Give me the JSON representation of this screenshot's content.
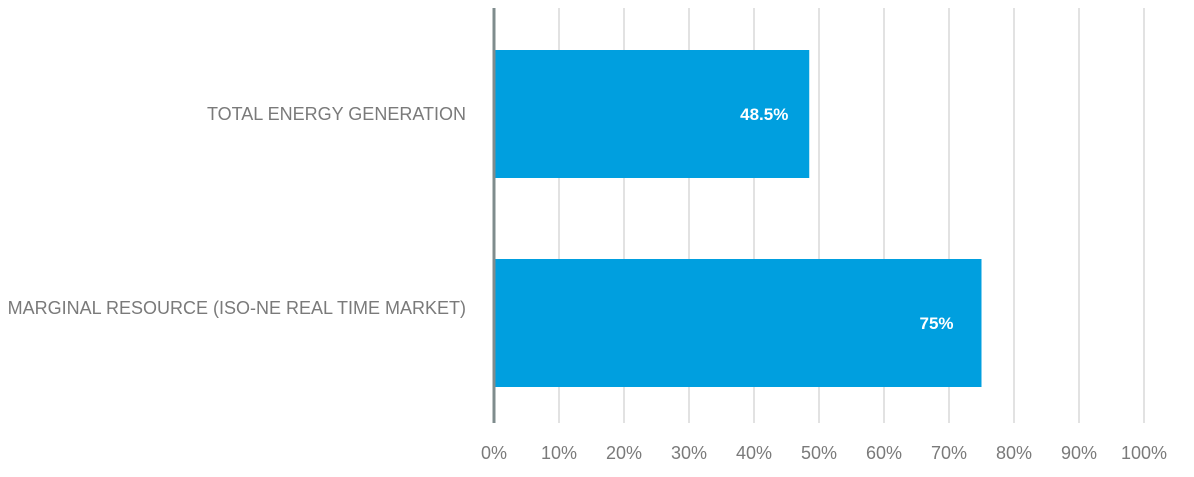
{
  "chart_data": {
    "type": "bar",
    "orientation": "horizontal",
    "categories": [
      "TOTAL ENERGY GENERATION",
      "MARGINAL RESOURCE (ISO-NE REAL TIME MARKET)"
    ],
    "values": [
      48.5,
      75
    ],
    "data_labels": [
      "48.5%",
      "75%"
    ],
    "xlim": [
      0,
      100
    ],
    "x_ticks": [
      0,
      10,
      20,
      30,
      40,
      50,
      60,
      70,
      80,
      90,
      100
    ],
    "x_tick_labels": [
      "0%",
      "10%",
      "20%",
      "30%",
      "40%",
      "50%",
      "60%",
      "70%",
      "80%",
      "90%",
      "100%"
    ],
    "grid": "vertical",
    "legend": "none",
    "colors": {
      "bar": "#009FDF",
      "data_label": "#FFFFFF",
      "axis": "#7F8C8D",
      "grid": "#D9D9D9",
      "text": "#7A7A7A"
    }
  }
}
